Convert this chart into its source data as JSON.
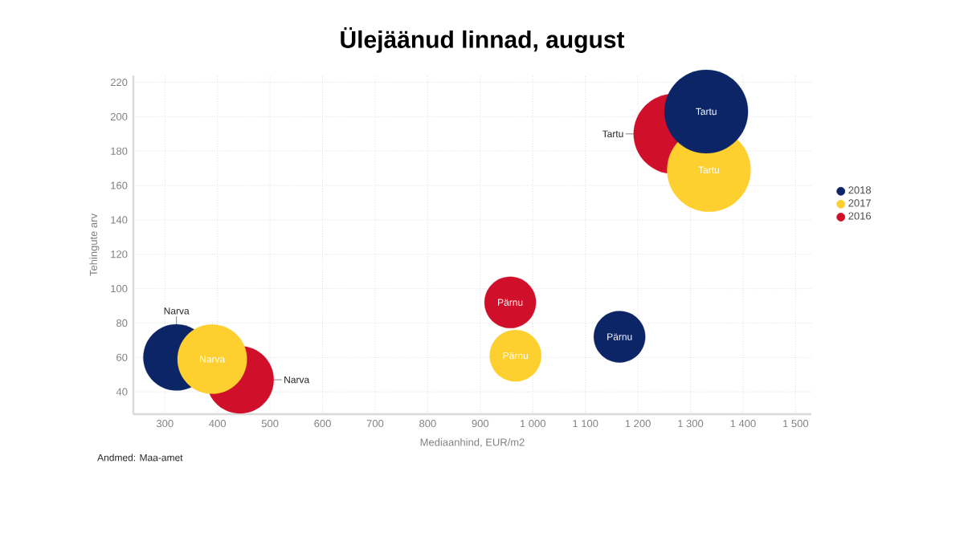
{
  "chart_data": {
    "type": "bubble",
    "title": "Ülejäänud linnad, august",
    "xlabel": "Mediaanhind, EUR/m2",
    "ylabel": "Tehingute arv",
    "series": [
      {
        "name": "2018",
        "color": "#0b2566",
        "x": [
          322,
          1165,
          1330
        ],
        "values": [
          60,
          72,
          203
        ],
        "sizes": [
          0.63,
          0.38,
          1
        ]
      },
      {
        "name": "2017",
        "color": "#fdd02f",
        "x": [
          390,
          967,
          1335
        ],
        "values": [
          59,
          61,
          169
        ],
        "sizes": [
          0.69,
          0.38,
          1
        ]
      },
      {
        "name": "2016",
        "color": "#d0102a",
        "x": [
          443,
          957,
          1268
        ],
        "values": [
          47,
          92,
          190
        ],
        "sizes": [
          0.65,
          0.38,
          0.92
        ]
      }
    ],
    "xlim": [
      240,
      1530
    ],
    "ylim": [
      27,
      224
    ],
    "xticks": [
      300,
      400,
      500,
      600,
      700,
      800,
      900,
      {
        "value": 1000,
        "label": "1 000"
      },
      {
        "value": 1100,
        "label": "1 100"
      },
      {
        "value": 1200,
        "label": "1 200"
      },
      {
        "value": 1300,
        "label": "1 300"
      },
      {
        "value": 1400,
        "label": "1 400"
      },
      {
        "value": 1500,
        "label": "1 500"
      }
    ],
    "yticks": [
      40,
      60,
      80,
      100,
      120,
      140,
      160,
      180,
      200,
      220
    ],
    "annotations": [
      {
        "text": "Narva",
        "x": 322,
        "y": 60
      },
      {
        "text": "Pärnu",
        "x": 1165,
        "y": 72
      },
      {
        "text": "Tartu",
        "x": 1330,
        "y": 203
      },
      {
        "text": "Narva",
        "x": 390,
        "y": 59
      },
      {
        "text": "Pärnu",
        "x": 967,
        "y": 61
      },
      {
        "text": "Tartu",
        "x": 1335,
        "y": 169
      },
      {
        "text": "Narva",
        "x": 443,
        "y": 47
      },
      {
        "text": "Pärnu",
        "x": 957,
        "y": 92
      },
      {
        "text": "Tartu",
        "x": 1268,
        "y": 190
      },
      "Andmed: Maa-amet"
    ],
    "grid": true,
    "legend": "right"
  }
}
